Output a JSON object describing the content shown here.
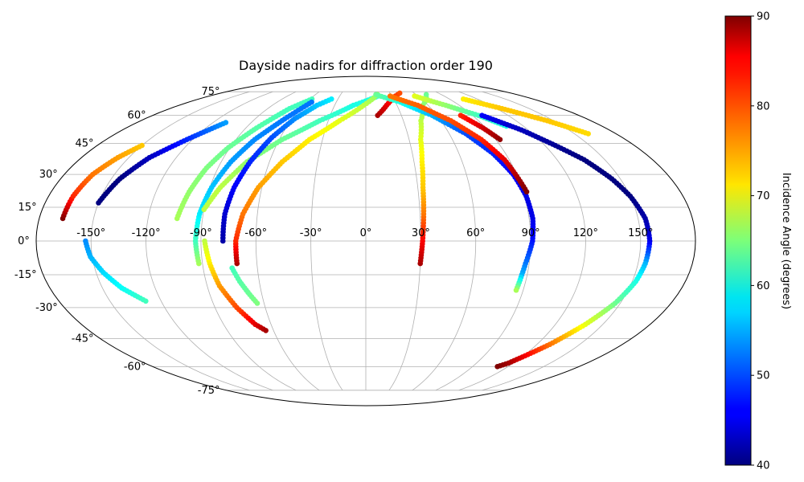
{
  "chart_data": {
    "type": "scatter",
    "projection": "mollweide",
    "title": "Dayside nadirs for diffraction order 190",
    "grid": true,
    "lon_ticks": [
      -150,
      -120,
      -90,
      -60,
      -30,
      0,
      30,
      60,
      90,
      120,
      150
    ],
    "lon_tick_labels": [
      "-150°",
      "-120°",
      "-90°",
      "-60°",
      "-30°",
      "0°",
      "30°",
      "60°",
      "90°",
      "120°",
      "150°"
    ],
    "lat_ticks": [
      -75,
      -60,
      -45,
      -30,
      -15,
      0,
      15,
      30,
      45,
      60,
      75
    ],
    "lat_tick_labels": [
      "-75°",
      "-60°",
      "-45°",
      "-30°",
      "-15°",
      "0°",
      "15°",
      "30°",
      "45°",
      "60°",
      "75°"
    ],
    "colorbar": {
      "label": "Incidence Angle (degrees)",
      "colormap": "jet",
      "vmin": 40,
      "vmax": 90,
      "ticks": [
        40,
        50,
        60,
        70,
        80,
        90
      ],
      "tick_labels": [
        "40",
        "50",
        "60",
        "70",
        "80",
        "90"
      ]
    },
    "series": [
      {
        "points": [
          [
            -167,
            10,
            90
          ],
          [
            -166,
            20,
            82
          ],
          [
            -163,
            30,
            78
          ],
          [
            -157,
            38,
            76
          ],
          [
            -150,
            44,
            74
          ]
        ]
      },
      {
        "points": [
          [
            -150,
            17,
            40
          ],
          [
            -145,
            28,
            40
          ],
          [
            -137,
            38,
            43
          ],
          [
            -124,
            47,
            48
          ],
          [
            -110,
            56,
            54
          ]
        ]
      },
      {
        "points": [
          [
            -153,
            0,
            53
          ],
          [
            -151,
            -7,
            55
          ],
          [
            -146,
            -14,
            57
          ],
          [
            -139,
            -21,
            59
          ],
          [
            -129,
            -27,
            62
          ]
        ]
      },
      {
        "points": [
          [
            -104,
            10,
            67
          ],
          [
            -101,
            22,
            66
          ],
          [
            -97,
            33,
            65
          ],
          [
            -91,
            43,
            64
          ],
          [
            -82,
            53,
            63
          ],
          [
            -70,
            64,
            62
          ],
          [
            -58,
            70,
            62
          ]
        ]
      },
      {
        "points": [
          [
            -92,
            -10,
            67
          ],
          [
            -93,
            0,
            62
          ],
          [
            -92,
            12,
            58
          ],
          [
            -89,
            24,
            56
          ],
          [
            -84,
            36,
            54
          ],
          [
            -77,
            47,
            53
          ],
          [
            -66,
            58,
            52
          ],
          [
            -55,
            68,
            52
          ]
        ]
      },
      {
        "points": [
          [
            -90,
            14,
            68
          ],
          [
            -84,
            24,
            68
          ],
          [
            -74,
            36,
            66
          ],
          [
            -58,
            47,
            64
          ],
          [
            -37,
            57,
            62
          ],
          [
            -12,
            66,
            60
          ],
          [
            14,
            72,
            60
          ]
        ]
      },
      {
        "points": [
          [
            -88,
            0,
            68
          ],
          [
            -86,
            -10,
            72
          ],
          [
            -83,
            -20,
            76
          ],
          [
            -77,
            -30,
            80
          ],
          [
            -70,
            -38,
            85
          ],
          [
            -65,
            -41,
            88
          ]
        ]
      },
      {
        "points": [
          [
            -74,
            -12,
            62
          ],
          [
            -71,
            -18,
            63
          ],
          [
            -67,
            -24,
            64
          ],
          [
            -64,
            -28,
            65
          ]
        ]
      },
      {
        "points": [
          [
            -78,
            0,
            42
          ],
          [
            -78,
            12,
            44
          ],
          [
            -76,
            24,
            46
          ],
          [
            -72,
            36,
            48
          ],
          [
            -66,
            48,
            50
          ],
          [
            -58,
            58,
            53
          ],
          [
            -47,
            66,
            56
          ],
          [
            -37,
            70,
            58
          ]
        ]
      },
      {
        "points": [
          [
            -71,
            -10,
            88
          ],
          [
            -71,
            0,
            82
          ],
          [
            -68,
            12,
            78
          ],
          [
            -62,
            24,
            76
          ],
          [
            -52,
            36,
            74
          ],
          [
            -39,
            47,
            72
          ],
          [
            -21,
            57,
            70
          ],
          [
            -2,
            66,
            68
          ],
          [
            14,
            73,
            66
          ]
        ]
      },
      {
        "points": [
          [
            10,
            60,
            88
          ],
          [
            20,
            66,
            85
          ],
          [
            30,
            71,
            82
          ],
          [
            42,
            74,
            80
          ]
        ]
      },
      {
        "points": [
          [
            30,
            -10,
            88
          ],
          [
            31,
            0,
            84
          ],
          [
            32,
            12,
            78
          ],
          [
            33,
            24,
            74
          ],
          [
            35,
            36,
            72
          ],
          [
            38,
            47,
            70
          ],
          [
            44,
            57,
            68
          ],
          [
            55,
            66,
            66
          ],
          [
            72,
            73,
            64
          ]
        ]
      },
      {
        "points": [
          [
            12,
            73,
            64
          ],
          [
            35,
            68,
            60
          ],
          [
            56,
            60,
            55
          ],
          [
            72,
            50,
            50
          ],
          [
            82,
            40,
            48
          ],
          [
            88,
            30,
            46
          ],
          [
            91,
            20,
            45
          ],
          [
            92,
            10,
            45
          ],
          [
            91,
            0,
            47
          ],
          [
            88,
            -10,
            52
          ],
          [
            87,
            -15,
            55
          ],
          [
            86,
            -22,
            67
          ]
        ]
      },
      {
        "points": [
          [
            28,
            72,
            78
          ],
          [
            50,
            66,
            79
          ],
          [
            68,
            57,
            80
          ],
          [
            80,
            47,
            82
          ],
          [
            87,
            37,
            85
          ],
          [
            90,
            28,
            88
          ],
          [
            92,
            22,
            90
          ]
        ]
      },
      {
        "points": [
          [
            56,
            72,
            70
          ],
          [
            77,
            66,
            66
          ],
          [
            95,
            60,
            62
          ],
          [
            107,
            54,
            60
          ]
        ]
      },
      {
        "points": [
          [
            80,
            60,
            82
          ],
          [
            88,
            53,
            86
          ],
          [
            93,
            47,
            89
          ]
        ]
      },
      {
        "points": [
          [
            98,
            60,
            46
          ],
          [
            115,
            52,
            43
          ],
          [
            127,
            44,
            41
          ],
          [
            137,
            37,
            40
          ],
          [
            145,
            28,
            40
          ],
          [
            150,
            20,
            40
          ],
          [
            154,
            10,
            42
          ],
          [
            155,
            0,
            45
          ],
          [
            154,
            -10,
            55
          ],
          [
            152,
            -18,
            60
          ],
          [
            147,
            -28,
            64
          ],
          [
            139,
            -38,
            70
          ],
          [
            129,
            -48,
            78
          ],
          [
            116,
            -58,
            88
          ],
          [
            111,
            -60,
            90
          ]
        ]
      },
      {
        "points": [
          [
            105,
            70,
            72
          ],
          [
            125,
            64,
            74
          ],
          [
            145,
            57,
            74
          ],
          [
            160,
            50,
            73
          ]
        ]
      }
    ]
  }
}
